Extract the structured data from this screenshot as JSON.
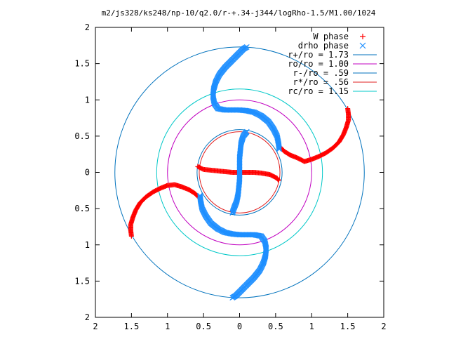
{
  "chart_data": {
    "type": "scatter",
    "title": "m2/js328/ks248/np-10/q2.0/r-+.34-j344/logRho-1.5/M1.00/1024",
    "xlabel": "",
    "ylabel": "",
    "xlim": [
      -2,
      2
    ],
    "ylim": [
      -2,
      2
    ],
    "grid": false,
    "legend_position": "top-right",
    "x_ticks": [
      -2,
      -1.5,
      -1,
      -0.5,
      0,
      0.5,
      1,
      1.5,
      2
    ],
    "x_tick_labels": [
      "2",
      "1.5",
      "1",
      "0.5",
      "0",
      "0.5",
      "1",
      "1.5",
      "2"
    ],
    "y_ticks": [
      -2,
      -1.5,
      -1,
      -0.5,
      0,
      0.5,
      1,
      1.5,
      2
    ],
    "y_tick_labels": [
      "2",
      "1.5",
      "1",
      "0.5",
      "0",
      "0.5",
      "1",
      "1.5",
      "2"
    ],
    "series": [
      {
        "name": "W phase",
        "marker": "plus",
        "color": "#ff0000",
        "points": [
          [
            -0.58,
            0.08
          ],
          [
            -0.5,
            0.04
          ],
          [
            -0.4,
            0.03
          ],
          [
            -0.3,
            0.02
          ],
          [
            -0.2,
            0.01
          ],
          [
            -0.1,
            0.0
          ],
          [
            0.0,
            0.0
          ],
          [
            0.1,
            0.0
          ],
          [
            0.2,
            0.0
          ],
          [
            0.3,
            -0.01
          ],
          [
            0.42,
            -0.03
          ],
          [
            0.52,
            -0.08
          ],
          [
            0.54,
            -0.11
          ],
          [
            0.56,
            0.35
          ],
          [
            0.62,
            0.29
          ],
          [
            0.7,
            0.24
          ],
          [
            0.8,
            0.2
          ],
          [
            0.9,
            0.15
          ],
          [
            1.0,
            0.18
          ],
          [
            1.1,
            0.22
          ],
          [
            1.2,
            0.27
          ],
          [
            1.3,
            0.34
          ],
          [
            1.38,
            0.42
          ],
          [
            1.44,
            0.52
          ],
          [
            1.48,
            0.62
          ],
          [
            1.51,
            0.72
          ],
          [
            1.51,
            0.8
          ],
          [
            1.5,
            0.88
          ],
          [
            -0.56,
            -0.35
          ],
          [
            -0.62,
            -0.29
          ],
          [
            -0.7,
            -0.24
          ],
          [
            -0.8,
            -0.2
          ],
          [
            -0.9,
            -0.17
          ],
          [
            -1.0,
            -0.18
          ],
          [
            -1.1,
            -0.22
          ],
          [
            -1.2,
            -0.27
          ],
          [
            -1.3,
            -0.34
          ],
          [
            -1.38,
            -0.42
          ],
          [
            -1.44,
            -0.52
          ],
          [
            -1.48,
            -0.62
          ],
          [
            -1.51,
            -0.72
          ],
          [
            -1.51,
            -0.8
          ],
          [
            -1.5,
            -0.88
          ]
        ]
      },
      {
        "name": "drho phase",
        "marker": "cross",
        "color": "#1e8fff",
        "points": [
          [
            0.1,
            0.56
          ],
          [
            0.05,
            0.5
          ],
          [
            0.02,
            0.4
          ],
          [
            0.01,
            0.3
          ],
          [
            0.0,
            0.2
          ],
          [
            0.0,
            0.1
          ],
          [
            0.0,
            0.0
          ],
          [
            0.0,
            -0.1
          ],
          [
            -0.01,
            -0.2
          ],
          [
            -0.02,
            -0.3
          ],
          [
            -0.04,
            -0.4
          ],
          [
            -0.08,
            -0.5
          ],
          [
            -0.1,
            -0.56
          ],
          [
            0.55,
            0.32
          ],
          [
            0.54,
            0.4
          ],
          [
            0.52,
            0.5
          ],
          [
            0.47,
            0.6
          ],
          [
            0.4,
            0.7
          ],
          [
            0.3,
            0.78
          ],
          [
            0.2,
            0.83
          ],
          [
            0.1,
            0.85
          ],
          [
            0.0,
            0.86
          ],
          [
            -0.1,
            0.86
          ],
          [
            -0.2,
            0.86
          ],
          [
            -0.3,
            0.88
          ],
          [
            -0.35,
            0.95
          ],
          [
            -0.37,
            1.05
          ],
          [
            -0.36,
            1.15
          ],
          [
            -0.33,
            1.25
          ],
          [
            -0.28,
            1.35
          ],
          [
            -0.2,
            1.45
          ],
          [
            -0.1,
            1.55
          ],
          [
            0.0,
            1.65
          ],
          [
            0.05,
            1.7
          ],
          [
            0.1,
            1.73
          ],
          [
            -0.55,
            -0.32
          ],
          [
            -0.54,
            -0.4
          ],
          [
            -0.52,
            -0.5
          ],
          [
            -0.47,
            -0.6
          ],
          [
            -0.4,
            -0.7
          ],
          [
            -0.3,
            -0.78
          ],
          [
            -0.2,
            -0.83
          ],
          [
            -0.1,
            -0.85
          ],
          [
            0.0,
            -0.86
          ],
          [
            0.1,
            -0.86
          ],
          [
            0.2,
            -0.86
          ],
          [
            0.3,
            -0.88
          ],
          [
            0.35,
            -0.95
          ],
          [
            0.37,
            -1.05
          ],
          [
            0.36,
            -1.15
          ],
          [
            0.33,
            -1.25
          ],
          [
            0.28,
            -1.35
          ],
          [
            0.2,
            -1.45
          ],
          [
            0.1,
            -1.55
          ],
          [
            0.0,
            -1.65
          ],
          [
            -0.05,
            -1.7
          ],
          [
            -0.1,
            -1.73
          ]
        ]
      },
      {
        "name": "r+/ro = 1.73",
        "type": "circle",
        "r": 1.73,
        "color": "#0072bd"
      },
      {
        "name": "ro/ro = 1.00",
        "type": "circle",
        "r": 1.0,
        "color": "#c000c0"
      },
      {
        "name": "r-/ro = .59",
        "type": "circle",
        "r": 0.59,
        "color": "#0072bd"
      },
      {
        "name": "r*/ro = .56",
        "type": "circle",
        "r": 0.56,
        "color": "#e02020"
      },
      {
        "name": "rc/ro = 1.15",
        "type": "circle",
        "r": 1.15,
        "color": "#00c8c8"
      }
    ]
  }
}
